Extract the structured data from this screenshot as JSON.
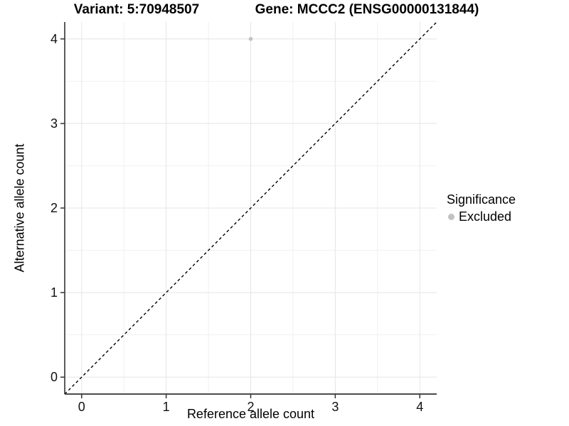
{
  "titles": {
    "left": "Variant: 5:70948507",
    "right": "Gene: MCCC2 (ENSG00000131844)"
  },
  "chart_data": {
    "type": "scatter",
    "xlabel": "Reference allele count",
    "ylabel": "Alternative allele count",
    "xlim": [
      -0.2,
      4.2
    ],
    "ylim": [
      -0.2,
      4.2
    ],
    "x_ticks": [
      0,
      1,
      2,
      3,
      4
    ],
    "y_ticks": [
      0,
      1,
      2,
      3,
      4
    ],
    "x_minor_ticks": [
      0.5,
      1.5,
      2.5,
      3.5
    ],
    "y_minor_ticks": [
      0.5,
      1.5,
      2.5,
      3.5
    ],
    "grid": "major and minor gridlines, light gray on white",
    "legend_position": "right",
    "series": [
      {
        "name": "Excluded",
        "color": "#c2c2c2",
        "marker_radius": 2.8,
        "points": [
          [
            2,
            4
          ]
        ]
      }
    ],
    "reference_line": {
      "type": "identity y = x",
      "style": "dashed",
      "color": "#000000",
      "from": [
        -0.2,
        -0.2
      ],
      "to": [
        4.2,
        4.2
      ]
    }
  },
  "legend": {
    "title": "Significance",
    "entries": [
      {
        "label": "Excluded",
        "color": "#c2c2c2"
      }
    ]
  },
  "colors": {
    "background": "#ffffff",
    "grid_major": "#e4e4e4",
    "grid_minor": "#f1f1f1",
    "axis_line": "#333333",
    "tick_text": "#111111"
  }
}
